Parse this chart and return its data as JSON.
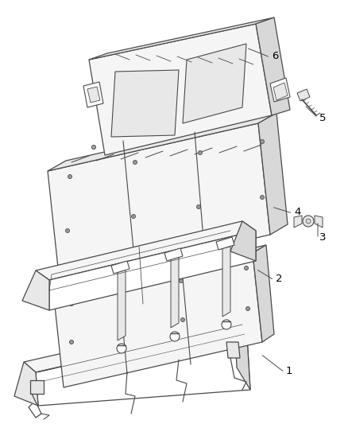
{
  "background_color": "#ffffff",
  "line_color": "#4a4a4a",
  "label_color": "#000000",
  "fig_width": 4.38,
  "fig_height": 5.33,
  "dpi": 100,
  "fill_light": "#f5f5f5",
  "fill_mid": "#e8e8e8",
  "fill_dark": "#d8d8d8",
  "fill_white": "#ffffff"
}
